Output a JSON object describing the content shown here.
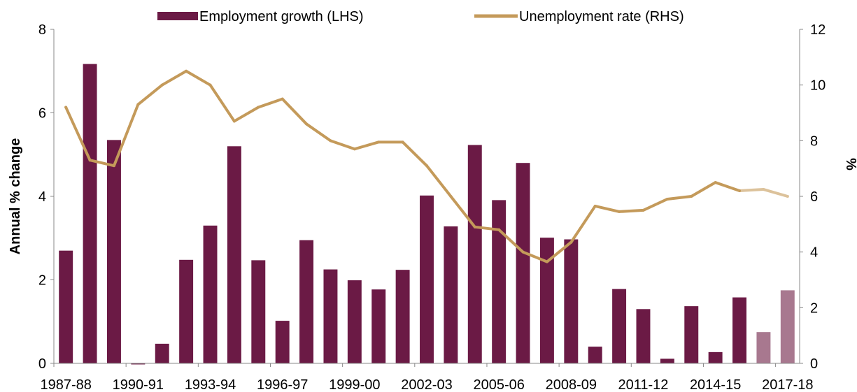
{
  "chart_data": {
    "type": "bar",
    "categories": [
      "1987-88",
      "1988-89",
      "1989-90",
      "1990-91",
      "1991-92",
      "1992-93",
      "1993-94",
      "1994-95",
      "1995-96",
      "1996-97",
      "1997-98",
      "1998-99",
      "1999-00",
      "2000-01",
      "2001-02",
      "2002-03",
      "2003-04",
      "2004-05",
      "2005-06",
      "2006-07",
      "2007-08",
      "2008-09",
      "2009-10",
      "2010-11",
      "2011-12",
      "2012-13",
      "2013-14",
      "2014-15",
      "2015-16",
      "2016-17",
      "2017-18"
    ],
    "x_tick_labels": [
      "1987-88",
      "1990-91",
      "1993-94",
      "1996-97",
      "1999-00",
      "2002-03",
      "2005-06",
      "2008-09",
      "2011-12",
      "2014-15",
      "2017-18"
    ],
    "series": [
      {
        "name": "Employment growth (LHS)",
        "kind": "bar",
        "axis": "left",
        "color": "#6b1a45",
        "forecast_color": "#a8788f",
        "values": [
          2.7,
          7.17,
          5.35,
          -0.02,
          0.47,
          2.48,
          3.3,
          5.2,
          2.47,
          1.02,
          2.95,
          2.25,
          1.99,
          1.77,
          2.24,
          4.02,
          3.28,
          5.23,
          3.91,
          4.8,
          3.01,
          2.97,
          0.4,
          1.78,
          1.3,
          0.11,
          1.37,
          0.27,
          1.58,
          0.75,
          1.75
        ],
        "forecast_from_index": 29
      },
      {
        "name": "Unemployment rate (RHS)",
        "kind": "line",
        "axis": "right",
        "color": "#c49a5a",
        "forecast_color": "#dcc29b",
        "values": [
          9.2,
          7.3,
          7.1,
          9.3,
          10.0,
          10.5,
          10.0,
          8.7,
          9.2,
          9.5,
          8.6,
          8.0,
          7.7,
          7.95,
          7.95,
          7.1,
          6.0,
          4.9,
          4.8,
          4.0,
          3.65,
          4.35,
          5.65,
          5.45,
          5.5,
          5.9,
          6.0,
          6.5,
          6.2,
          6.25,
          6.0
        ],
        "forecast_from_index": 28
      }
    ],
    "left_axis": {
      "label": "Annual % change",
      "ylim": [
        0,
        8
      ],
      "ticks": [
        "0",
        "2",
        "4",
        "6",
        "8"
      ]
    },
    "right_axis": {
      "label": "%",
      "ylim": [
        0,
        12
      ],
      "ticks": [
        "0",
        "2",
        "4",
        "6",
        "8",
        "10",
        "12"
      ]
    },
    "grid": false,
    "legend_position": "top"
  }
}
